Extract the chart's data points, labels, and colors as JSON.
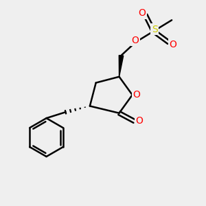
{
  "bg_color": "#efefef",
  "atom_colors": {
    "O": "#ff0000",
    "S": "#cccc00",
    "C": "#000000"
  },
  "bond_color": "#000000",
  "bond_width": 1.8,
  "bg_hex": "#efefef"
}
